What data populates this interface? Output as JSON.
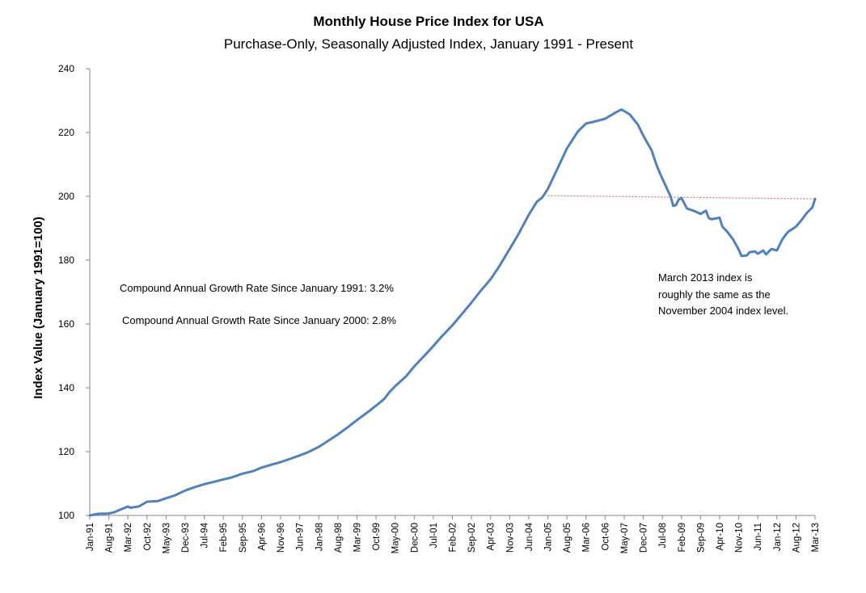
{
  "chart_data": {
    "type": "line",
    "title": "Monthly House Price Index for USA",
    "subtitle": "Purchase-Only, Seasonally Adjusted Index, January 1991 - Present",
    "xlabel": "",
    "ylabel": "Index Value (January 1991=100)",
    "ylim": [
      100,
      240
    ],
    "yticks": [
      100,
      120,
      140,
      160,
      180,
      200,
      220,
      240
    ],
    "x_tick_labels": [
      "Jan-91",
      "Aug-91",
      "Mar-92",
      "Oct-92",
      "May-93",
      "Dec-93",
      "Jul-94",
      "Feb-95",
      "Sep-95",
      "Apr-96",
      "Nov-96",
      "Jun-97",
      "Jan-98",
      "Aug-98",
      "Mar-99",
      "Oct-99",
      "May-00",
      "Dec-00",
      "Jul-01",
      "Feb-02",
      "Sep-02",
      "Apr-03",
      "Nov-03",
      "Jun-04",
      "Jan-05",
      "Aug-05",
      "Mar-06",
      "Oct-06",
      "May-07",
      "Dec-07",
      "Jul-08",
      "Feb-09",
      "Sep-09",
      "Apr-10",
      "Nov-10",
      "Jun-11",
      "Jan-12",
      "Aug-12",
      "Mar-13"
    ],
    "grid": false,
    "series": [
      {
        "color": "#4f81bd",
        "points": [
          [
            "Jan-91",
            100.0
          ],
          [
            "Apr-91",
            100.5
          ],
          [
            "Aug-91",
            100.6
          ],
          [
            "Oct-91",
            101.0
          ],
          [
            "Mar-92",
            102.8
          ],
          [
            "Apr-92",
            102.4
          ],
          [
            "Jul-92",
            102.8
          ],
          [
            "Oct-92",
            104.3
          ],
          [
            "Feb-93",
            104.5
          ],
          [
            "May-93",
            105.4
          ],
          [
            "Aug-93",
            106.2
          ],
          [
            "Dec-93",
            107.8
          ],
          [
            "Mar-94",
            108.7
          ],
          [
            "Jul-94",
            109.8
          ],
          [
            "Nov-94",
            110.6
          ],
          [
            "Feb-95",
            111.3
          ],
          [
            "May-95",
            111.9
          ],
          [
            "Sep-95",
            113.1
          ],
          [
            "Jan-96",
            113.9
          ],
          [
            "Apr-96",
            115.0
          ],
          [
            "Aug-96",
            116.0
          ],
          [
            "Nov-96",
            116.7
          ],
          [
            "Feb-97",
            117.6
          ],
          [
            "Jun-97",
            118.8
          ],
          [
            "Sep-97",
            119.8
          ],
          [
            "Jan-98",
            121.5
          ],
          [
            "May-98",
            123.7
          ],
          [
            "Aug-98",
            125.4
          ],
          [
            "Dec-98",
            127.9
          ],
          [
            "Mar-99",
            129.9
          ],
          [
            "Jul-99",
            132.4
          ],
          [
            "Oct-99",
            134.4
          ],
          [
            "Jan-00",
            136.5
          ],
          [
            "Mar-00",
            138.7
          ],
          [
            "May-00",
            140.5
          ],
          [
            "Sep-00",
            143.6
          ],
          [
            "Dec-00",
            146.7
          ],
          [
            "Apr-01",
            150.3
          ],
          [
            "Jul-01",
            153.1
          ],
          [
            "Oct-01",
            156.0
          ],
          [
            "Feb-02",
            159.6
          ],
          [
            "May-02",
            162.6
          ],
          [
            "Sep-02",
            166.7
          ],
          [
            "Dec-02",
            170.0
          ],
          [
            "Apr-03",
            174.0
          ],
          [
            "Jul-03",
            177.8
          ],
          [
            "Nov-03",
            183.5
          ],
          [
            "Feb-04",
            187.8
          ],
          [
            "Jun-04",
            194.2
          ],
          [
            "Sep-04",
            198.3
          ],
          [
            "Nov-04",
            199.7
          ],
          [
            "Jan-05",
            202.3
          ],
          [
            "Apr-05",
            207.7
          ],
          [
            "Aug-05",
            215.0
          ],
          [
            "Dec-05",
            220.3
          ],
          [
            "Mar-06",
            222.8
          ],
          [
            "Jun-06",
            223.4
          ],
          [
            "Oct-06",
            224.3
          ],
          [
            "Feb-07",
            226.3
          ],
          [
            "Apr-07",
            227.2
          ],
          [
            "Jul-07",
            225.7
          ],
          [
            "Oct-07",
            222.5
          ],
          [
            "Dec-07",
            219.0
          ],
          [
            "Mar-08",
            214.5
          ],
          [
            "May-08",
            209.5
          ],
          [
            "Jul-08",
            205.5
          ],
          [
            "Oct-08",
            200.0
          ],
          [
            "Nov-08",
            197.0
          ],
          [
            "Dec-08",
            197.3
          ],
          [
            "Jan-09",
            199.0
          ],
          [
            "Feb-09",
            199.5
          ],
          [
            "Apr-09",
            196.2
          ],
          [
            "Jul-09",
            195.3
          ],
          [
            "Sep-09",
            194.5
          ],
          [
            "Nov-09",
            195.5
          ],
          [
            "Dec-09",
            193.2
          ],
          [
            "Jan-10",
            192.8
          ],
          [
            "Apr-10",
            193.3
          ],
          [
            "May-10",
            190.5
          ],
          [
            "Jul-10",
            188.7
          ],
          [
            "Sep-10",
            186.4
          ],
          [
            "Nov-10",
            183.3
          ],
          [
            "Dec-10",
            181.3
          ],
          [
            "Feb-11",
            181.5
          ],
          [
            "Mar-11",
            182.5
          ],
          [
            "May-11",
            182.7
          ],
          [
            "Jun-11",
            182.0
          ],
          [
            "Aug-11",
            183.0
          ],
          [
            "Sep-11",
            181.8
          ],
          [
            "Nov-11",
            183.5
          ],
          [
            "Jan-12",
            183.0
          ],
          [
            "Mar-12",
            186.5
          ],
          [
            "May-12",
            188.8
          ],
          [
            "Aug-12",
            190.5
          ],
          [
            "Oct-12",
            192.5
          ],
          [
            "Dec-12",
            194.8
          ],
          [
            "Feb-13",
            196.5
          ],
          [
            "Mar-13",
            199.2
          ]
        ]
      }
    ],
    "reference_line": {
      "from": [
        "Jan-05",
        200.2
      ],
      "to": [
        "Mar-13",
        199.2
      ],
      "color": "#d9534f",
      "style": "dotted"
    },
    "annotations": {
      "cagr_1991": "Compound Annual Growth Rate Since January 1991:  3.2%",
      "cagr_2000": "Compound Annual Growth Rate Since January 2000:  2.8%",
      "note_lines": [
        "March 2013 index is",
        "roughly the same as the",
        "November 2004 index level."
      ]
    }
  }
}
